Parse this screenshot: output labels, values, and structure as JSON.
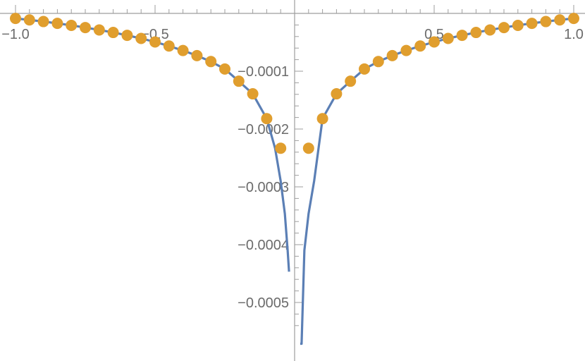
{
  "chart_data": {
    "type": "line",
    "title": "",
    "xlabel": "",
    "ylabel": "",
    "xlim": [
      -1.0,
      1.0
    ],
    "ylim": [
      -0.00057,
      0.0
    ],
    "grid": false,
    "legend": "none",
    "x_ticks": [
      {
        "value": -1.0,
        "label": "−1.0"
      },
      {
        "value": -0.5,
        "label": "−0.5"
      },
      {
        "value": 0.5,
        "label": "0.5"
      },
      {
        "value": 1.0,
        "label": "1.0"
      }
    ],
    "y_ticks": [
      {
        "value": -0.0001,
        "label": "−0.0001"
      },
      {
        "value": -0.0002,
        "label": "−0.0002"
      },
      {
        "value": -0.0003,
        "label": "−0.0003"
      },
      {
        "value": -0.0004,
        "label": "−0.0004"
      },
      {
        "value": -0.0005,
        "label": "−0.0005"
      }
    ],
    "series": [
      {
        "kind": "curve",
        "color": "#5b7fb5",
        "x": [
          -1.0,
          -0.95,
          -0.9,
          -0.85,
          -0.8,
          -0.75,
          -0.7,
          -0.65,
          -0.6,
          -0.55,
          -0.5,
          -0.45,
          -0.4,
          -0.35,
          -0.3,
          -0.25,
          -0.2,
          -0.15,
          -0.1,
          -0.07,
          -0.05,
          -0.035,
          -0.025,
          -0.02,
          0.02,
          0.025,
          0.035,
          0.05,
          0.07,
          0.1,
          0.15,
          0.2,
          0.25,
          0.3,
          0.35,
          0.4,
          0.45,
          0.5,
          0.55,
          0.6,
          0.65,
          0.7,
          0.75,
          0.8,
          0.85,
          0.9,
          0.95,
          1.0
        ],
        "y": [
          -8.7e-06,
          -1.13e-05,
          -1.41e-05,
          -1.72e-05,
          -2.07e-05,
          -2.45e-05,
          -2.86e-05,
          -3.3e-05,
          -3.79e-05,
          -4.33e-05,
          -4.94e-05,
          -5.64e-05,
          -6.42e-05,
          -7.3e-05,
          -8.33e-05,
          -9.62e-05,
          -0.0001173,
          -0.0001391,
          -0.000182,
          -0.0002332,
          -0.0002898,
          -0.0003464,
          -0.0004098,
          -0.0004467,
          -0.0005714,
          -0.0005714,
          -0.0004098,
          -0.0003464,
          -0.0002898,
          -0.000182,
          -0.0001391,
          -0.0001173,
          -9.62e-05,
          -8.33e-05,
          -7.3e-05,
          -6.42e-05,
          -5.64e-05,
          -4.94e-05,
          -4.33e-05,
          -3.79e-05,
          -3.3e-05,
          -2.86e-05,
          -2.45e-05,
          -2.07e-05,
          -1.72e-05,
          -1.41e-05,
          -1.13e-05,
          -8.7e-06
        ],
        "segments": [
          [
            -1.0,
            -0.02
          ],
          [
            0.02,
            1.0
          ]
        ]
      },
      {
        "kind": "points",
        "color": "#e09e2e",
        "x": [
          -1.0,
          -0.95,
          -0.9,
          -0.85,
          -0.8,
          -0.75,
          -0.7,
          -0.65,
          -0.6,
          -0.55,
          -0.5,
          -0.45,
          -0.4,
          -0.35,
          -0.3,
          -0.25,
          -0.2,
          -0.15,
          -0.1,
          -0.05,
          0.05,
          0.1,
          0.15,
          0.2,
          0.25,
          0.3,
          0.35,
          0.4,
          0.45,
          0.5,
          0.55,
          0.6,
          0.65,
          0.7,
          0.75,
          0.8,
          0.85,
          0.9,
          0.95,
          1.0
        ],
        "y": [
          -8.7e-06,
          -1.13e-05,
          -1.41e-05,
          -1.72e-05,
          -2.07e-05,
          -2.45e-05,
          -2.86e-05,
          -3.3e-05,
          -3.79e-05,
          -4.33e-05,
          -4.94e-05,
          -5.64e-05,
          -6.42e-05,
          -7.3e-05,
          -8.33e-05,
          -9.62e-05,
          -0.0001173,
          -0.0001391,
          -0.000182,
          -0.0002332,
          -0.0002332,
          -0.000182,
          -0.0001391,
          -0.0001173,
          -9.62e-05,
          -8.33e-05,
          -7.3e-05,
          -6.42e-05,
          -5.64e-05,
          -4.94e-05,
          -4.33e-05,
          -3.79e-05,
          -3.3e-05,
          -2.86e-05,
          -2.45e-05,
          -2.07e-05,
          -1.72e-05,
          -1.41e-05,
          -1.13e-05,
          -8.7e-06
        ]
      }
    ]
  }
}
